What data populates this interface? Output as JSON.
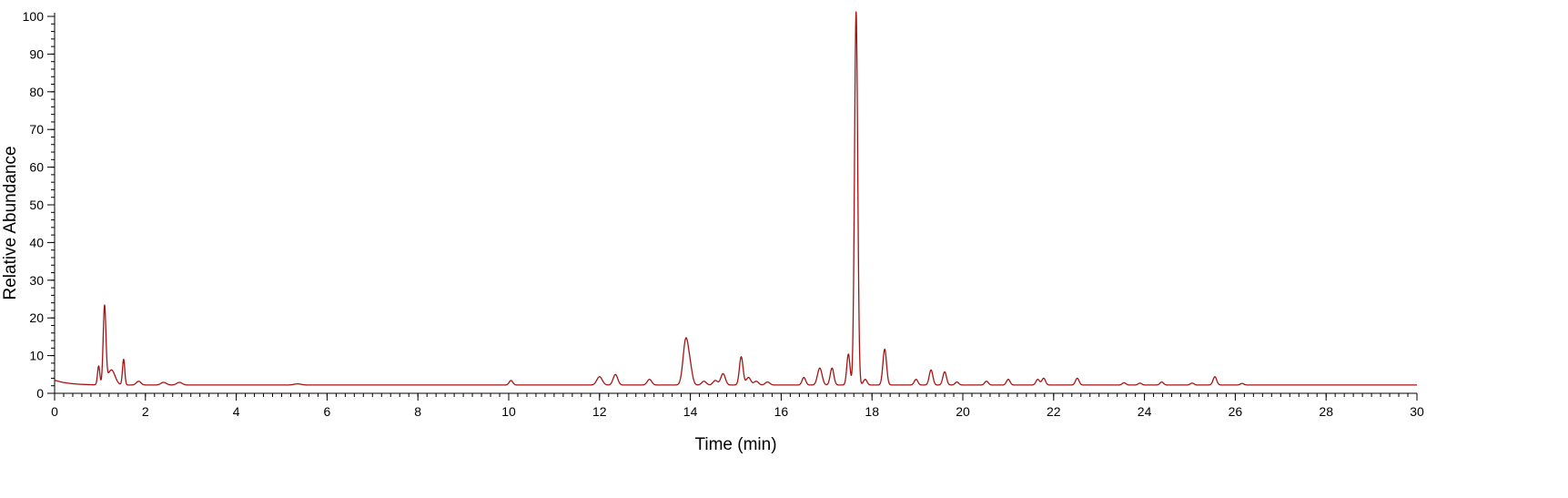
{
  "chart_data": {
    "type": "line",
    "title": "",
    "xlabel": "Time (min)",
    "ylabel": "Relative Abundance",
    "xlim": [
      0,
      30
    ],
    "ylim": [
      0,
      100
    ],
    "x_ticks": [
      0,
      2,
      4,
      6,
      8,
      10,
      12,
      14,
      16,
      18,
      20,
      22,
      24,
      26,
      28,
      30
    ],
    "y_ticks": [
      0,
      10,
      20,
      30,
      40,
      50,
      60,
      70,
      80,
      90,
      100
    ],
    "x_tick_labels": [
      "0",
      "2",
      "4",
      "6",
      "8",
      "10",
      "12",
      "14",
      "16",
      "18",
      "20",
      "22",
      "24",
      "26",
      "28",
      "30"
    ],
    "y_tick_labels": [
      "0",
      "10",
      "20",
      "30",
      "40",
      "50",
      "60",
      "70",
      "80",
      "90",
      "100"
    ],
    "grid": false,
    "line_color": "#a31515",
    "series": [
      {
        "baseline": 2.2,
        "start": {
          "x": 0,
          "y": 3.5
        },
        "peaks": [
          [
            0.97,
            5.0,
            0.025
          ],
          [
            1.1,
            20.5,
            0.03
          ],
          [
            1.25,
            4.0,
            0.08
          ],
          [
            1.52,
            6.8,
            0.025
          ],
          [
            1.85,
            1.0,
            0.05
          ],
          [
            2.4,
            0.7,
            0.06
          ],
          [
            2.75,
            0.7,
            0.06
          ],
          [
            5.35,
            0.3,
            0.08
          ],
          [
            10.05,
            1.2,
            0.04
          ],
          [
            12.0,
            2.2,
            0.06
          ],
          [
            12.35,
            2.8,
            0.05
          ],
          [
            13.1,
            1.5,
            0.05
          ],
          [
            13.9,
            12.0,
            0.06
          ],
          [
            14.0,
            3.5,
            0.05
          ],
          [
            14.3,
            1.0,
            0.05
          ],
          [
            14.55,
            1.2,
            0.05
          ],
          [
            14.72,
            3.0,
            0.05
          ],
          [
            15.12,
            7.5,
            0.04
          ],
          [
            15.28,
            2.0,
            0.05
          ],
          [
            15.45,
            1.0,
            0.05
          ],
          [
            15.7,
            0.8,
            0.05
          ],
          [
            16.5,
            2.0,
            0.04
          ],
          [
            16.85,
            4.5,
            0.05
          ],
          [
            17.12,
            4.5,
            0.04
          ],
          [
            17.48,
            8.2,
            0.035
          ],
          [
            17.65,
            99.0,
            0.035
          ],
          [
            17.85,
            1.5,
            0.04
          ],
          [
            18.28,
            9.5,
            0.04
          ],
          [
            18.97,
            1.5,
            0.04
          ],
          [
            19.3,
            4.0,
            0.04
          ],
          [
            19.6,
            3.5,
            0.04
          ],
          [
            19.87,
            0.8,
            0.04
          ],
          [
            20.52,
            1.0,
            0.04
          ],
          [
            21.0,
            1.5,
            0.04
          ],
          [
            21.65,
            1.5,
            0.04
          ],
          [
            21.78,
            1.8,
            0.04
          ],
          [
            22.52,
            1.8,
            0.04
          ],
          [
            23.55,
            0.6,
            0.04
          ],
          [
            23.9,
            0.5,
            0.04
          ],
          [
            24.38,
            0.8,
            0.04
          ],
          [
            25.05,
            0.5,
            0.04
          ],
          [
            25.55,
            2.2,
            0.04
          ],
          [
            26.15,
            0.4,
            0.04
          ]
        ]
      }
    ]
  }
}
